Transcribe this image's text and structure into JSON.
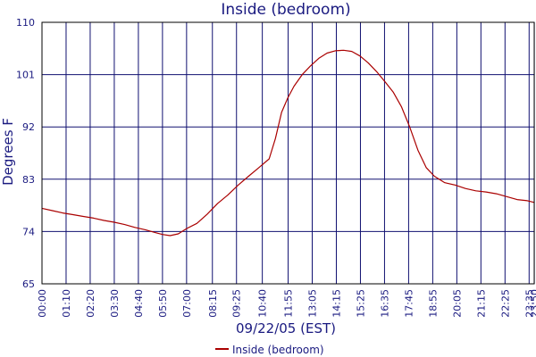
{
  "chart_data": {
    "type": "line",
    "title": "Inside (bedroom)",
    "xlabel": "09/22/05 (EST)",
    "ylabel": "Degrees F",
    "ylim": [
      65,
      110
    ],
    "yticks": [
      "65",
      "74",
      "83",
      "92",
      "101",
      "110"
    ],
    "yticks_values": [
      65,
      74,
      83,
      92,
      101,
      110
    ],
    "xlim_hours": [
      0,
      23.83
    ],
    "xticks": [
      "00:00",
      "01:10",
      "02:20",
      "03:30",
      "04:40",
      "05:50",
      "07:00",
      "08:15",
      "09:25",
      "10:40",
      "11:55",
      "13:05",
      "14:15",
      "15:25",
      "16:35",
      "17:45",
      "18:55",
      "20:05",
      "21:15",
      "22:25",
      "23:35",
      "23:50"
    ],
    "xticks_hours": [
      0,
      1.1667,
      2.3333,
      3.5,
      4.6667,
      5.8333,
      7.0,
      8.25,
      9.4167,
      10.6667,
      11.9167,
      13.0833,
      14.25,
      15.4167,
      16.5833,
      17.75,
      18.9167,
      20.0833,
      21.25,
      22.4167,
      23.5833,
      23.8333
    ],
    "grid": true,
    "legend": "bottom-center",
    "colors": {
      "line": "#aa0000",
      "axis_text": "#1a1a80",
      "grid": "#101070",
      "title": "#1a1a80"
    },
    "series": [
      {
        "name": "Inside (bedroom)",
        "x": [
          0,
          0.5,
          1.0,
          1.5,
          2.0,
          2.5,
          3.0,
          3.5,
          4.0,
          4.5,
          5.0,
          5.5,
          5.83,
          6.2,
          6.6,
          7.0,
          7.5,
          8.0,
          8.5,
          9.0,
          9.5,
          10.0,
          10.5,
          11.0,
          11.3,
          11.6,
          11.9,
          12.2,
          12.6,
          13.0,
          13.4,
          13.8,
          14.2,
          14.6,
          15.0,
          15.4,
          15.8,
          16.2,
          16.6,
          17.0,
          17.4,
          17.8,
          18.2,
          18.6,
          19.0,
          19.5,
          20.0,
          20.5,
          21.0,
          21.5,
          22.0,
          22.5,
          23.0,
          23.5,
          23.83
        ],
        "y": [
          78.0,
          77.6,
          77.2,
          76.9,
          76.6,
          76.3,
          75.9,
          75.6,
          75.2,
          74.7,
          74.3,
          73.8,
          73.5,
          73.3,
          73.6,
          74.5,
          75.4,
          77.0,
          78.8,
          80.3,
          82.0,
          83.5,
          85.0,
          86.5,
          90.0,
          94.5,
          97.0,
          99.0,
          101.0,
          102.5,
          103.8,
          104.7,
          105.1,
          105.2,
          105.0,
          104.2,
          103.0,
          101.5,
          99.8,
          98.0,
          95.5,
          92.0,
          88.0,
          85.0,
          83.5,
          82.4,
          82.0,
          81.4,
          81.0,
          80.8,
          80.5,
          80.0,
          79.5,
          79.3,
          79.0
        ]
      }
    ]
  }
}
